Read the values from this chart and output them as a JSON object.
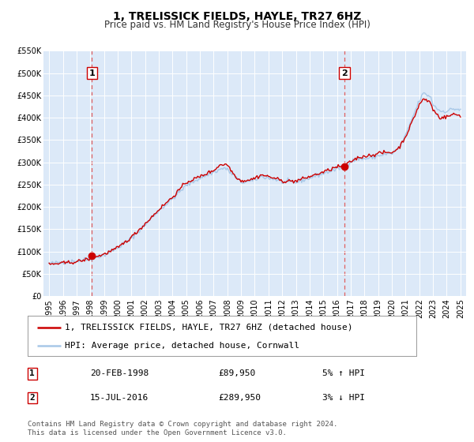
{
  "title": "1, TRELISSICK FIELDS, HAYLE, TR27 6HZ",
  "subtitle": "Price paid vs. HM Land Registry's House Price Index (HPI)",
  "ylim": [
    0,
    550000
  ],
  "yticks": [
    0,
    50000,
    100000,
    150000,
    200000,
    250000,
    300000,
    350000,
    400000,
    450000,
    500000,
    550000
  ],
  "ytick_labels": [
    "£0",
    "£50K",
    "£100K",
    "£150K",
    "£200K",
    "£250K",
    "£300K",
    "£350K",
    "£400K",
    "£450K",
    "£500K",
    "£550K"
  ],
  "xlim_start": 1994.6,
  "xlim_end": 2025.4,
  "xticks": [
    1995,
    1996,
    1997,
    1998,
    1999,
    2000,
    2001,
    2002,
    2003,
    2004,
    2005,
    2006,
    2007,
    2008,
    2009,
    2010,
    2011,
    2012,
    2013,
    2014,
    2015,
    2016,
    2017,
    2018,
    2019,
    2020,
    2021,
    2022,
    2023,
    2024,
    2025
  ],
  "background_color": "#dce9f8",
  "fig_bg_color": "#ffffff",
  "hpi_line_color": "#a8c8e8",
  "price_line_color": "#cc0000",
  "marker1_x": 1998.13,
  "marker1_y": 89950,
  "marker2_x": 2016.54,
  "marker2_y": 289950,
  "vline1_x": 1998.13,
  "vline2_x": 2016.54,
  "vline_color": "#e06060",
  "legend_label_price": "1, TRELISSICK FIELDS, HAYLE, TR27 6HZ (detached house)",
  "legend_label_hpi": "HPI: Average price, detached house, Cornwall",
  "table_row1": [
    "1",
    "20-FEB-1998",
    "£89,950",
    "5% ↑ HPI"
  ],
  "table_row2": [
    "2",
    "15-JUL-2016",
    "£289,950",
    "3% ↓ HPI"
  ],
  "footer_text": "Contains HM Land Registry data © Crown copyright and database right 2024.\nThis data is licensed under the Open Government Licence v3.0.",
  "title_fontsize": 10,
  "subtitle_fontsize": 8.5,
  "tick_fontsize": 7,
  "legend_fontsize": 8,
  "table_fontsize": 8,
  "footer_fontsize": 6.5
}
